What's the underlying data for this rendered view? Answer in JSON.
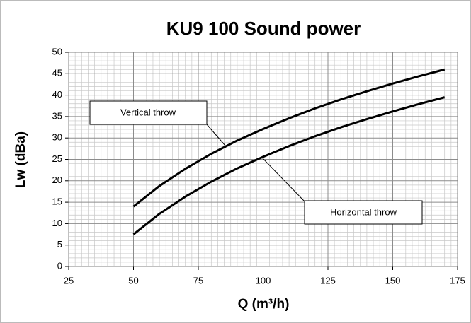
{
  "chart_data": {
    "type": "line",
    "title": "KU9 100 Sound power",
    "x_label": "Q (m³/h)",
    "y_label": "Lw (dBa)",
    "x": [
      50,
      60,
      70,
      80,
      90,
      100,
      110,
      120,
      130,
      140,
      150,
      160,
      170
    ],
    "series": [
      {
        "name": "Vertical throw",
        "color": "#000000",
        "values": [
          14,
          18.8,
          22.8,
          26.3,
          29.4,
          32.1,
          34.6,
          36.9,
          39.0,
          40.9,
          42.7,
          44.4,
          46
        ]
      },
      {
        "name": "Horizontal throw",
        "color": "#000000",
        "values": [
          7.5,
          12.3,
          16.3,
          19.8,
          22.9,
          25.6,
          28.1,
          30.4,
          32.5,
          34.4,
          36.2,
          37.9,
          39.5
        ]
      }
    ],
    "xlim": [
      25,
      175
    ],
    "xticks": [
      25,
      50,
      75,
      100,
      125,
      150,
      175
    ],
    "ylim": [
      0,
      50
    ],
    "yticks": [
      0,
      5,
      10,
      15,
      20,
      25,
      30,
      35,
      40,
      45,
      50
    ],
    "grid": true
  }
}
